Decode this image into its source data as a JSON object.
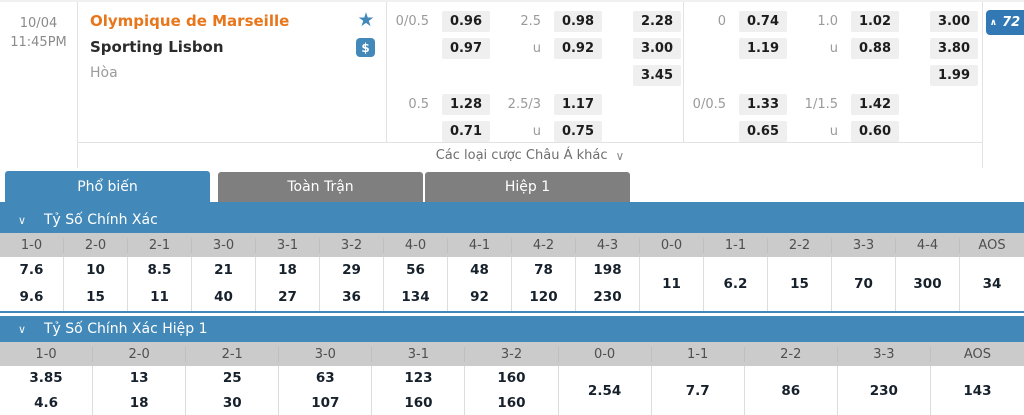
{
  "match": {
    "date": "10/04",
    "time": "11:45PM",
    "home_team": "Olympique de Marseille",
    "away_team": "Sporting Lisbon",
    "draw_label": "Hòa",
    "more_markets_label": "Các loại cược Châu Á khác",
    "markets_count": "72"
  },
  "icons": {
    "star": "★",
    "dollar": "$",
    "chevron_down": "∨",
    "chevron_up": "∧"
  },
  "odds": {
    "full_time": {
      "main": {
        "hdp_line": "0/0.5",
        "hdp_home": "0.96",
        "hdp_away": "0.97",
        "ou_line": "2.5",
        "ou_over": "0.98",
        "under_label": "u",
        "ou_under": "0.92",
        "x12_home": "2.28",
        "x12_away": "3.00",
        "x12_draw": "3.45"
      },
      "alt": {
        "hdp_line": "0.5",
        "hdp_home": "1.28",
        "hdp_away": "0.71",
        "ou_line": "2.5/3",
        "ou_over": "1.17",
        "under_label": "u",
        "ou_under": "0.75"
      }
    },
    "first_half": {
      "main": {
        "hdp_line": "0",
        "hdp_home": "0.74",
        "hdp_away": "1.19",
        "ou_line": "1.0",
        "ou_over": "1.02",
        "under_label": "u",
        "ou_under": "0.88",
        "x12_home": "3.00",
        "x12_away": "3.80",
        "x12_draw": "1.99"
      },
      "alt": {
        "hdp_line": "0/0.5",
        "hdp_home": "1.33",
        "hdp_away": "0.65",
        "ou_line": "1/1.5",
        "ou_over": "1.42",
        "under_label": "u",
        "ou_under": "0.60"
      }
    }
  },
  "tabs": [
    {
      "label": "Phổ biến",
      "active": true
    },
    {
      "label": "Toàn Trận",
      "active": false
    },
    {
      "label": "Hiệp 1",
      "active": false
    }
  ],
  "sections": [
    {
      "title": "Tỷ Số Chính Xác",
      "columns": [
        "1-0",
        "2-0",
        "2-1",
        "3-0",
        "3-1",
        "3-2",
        "4-0",
        "4-1",
        "4-2",
        "4-3",
        "0-0",
        "1-1",
        "2-2",
        "3-3",
        "4-4",
        "AOS"
      ],
      "cells": [
        {
          "v1": "7.6",
          "v2": "9.6"
        },
        {
          "v1": "10",
          "v2": "15"
        },
        {
          "v1": "8.5",
          "v2": "11"
        },
        {
          "v1": "21",
          "v2": "40"
        },
        {
          "v1": "18",
          "v2": "27"
        },
        {
          "v1": "29",
          "v2": "36"
        },
        {
          "v1": "56",
          "v2": "134"
        },
        {
          "v1": "48",
          "v2": "92"
        },
        {
          "v1": "78",
          "v2": "120"
        },
        {
          "v1": "198",
          "v2": "230"
        },
        {
          "v": "11"
        },
        {
          "v": "6.2"
        },
        {
          "v": "15"
        },
        {
          "v": "70"
        },
        {
          "v": "300"
        },
        {
          "v": "34"
        }
      ]
    },
    {
      "title": "Tỷ Số Chính Xác Hiệp 1",
      "columns": [
        "1-0",
        "2-0",
        "2-1",
        "3-0",
        "3-1",
        "3-2",
        "0-0",
        "1-1",
        "2-2",
        "3-3",
        "AOS"
      ],
      "cells": [
        {
          "v1": "3.85",
          "v2": "4.6"
        },
        {
          "v1": "13",
          "v2": "18"
        },
        {
          "v1": "25",
          "v2": "30"
        },
        {
          "v1": "63",
          "v2": "107"
        },
        {
          "v1": "123",
          "v2": "160"
        },
        {
          "v1": "160",
          "v2": "160"
        },
        {
          "v": "2.54"
        },
        {
          "v": "7.7"
        },
        {
          "v": "86"
        },
        {
          "v": "230"
        },
        {
          "v": "143"
        }
      ]
    }
  ],
  "colors": {
    "accent_blue": "#4289b9",
    "badge_blue": "#3178b5",
    "team_orange": "#e8761b",
    "tab_gray": "#7f7f7f",
    "column_header_gray": "#cbcbcb",
    "odds_button_gray": "#efefef"
  }
}
